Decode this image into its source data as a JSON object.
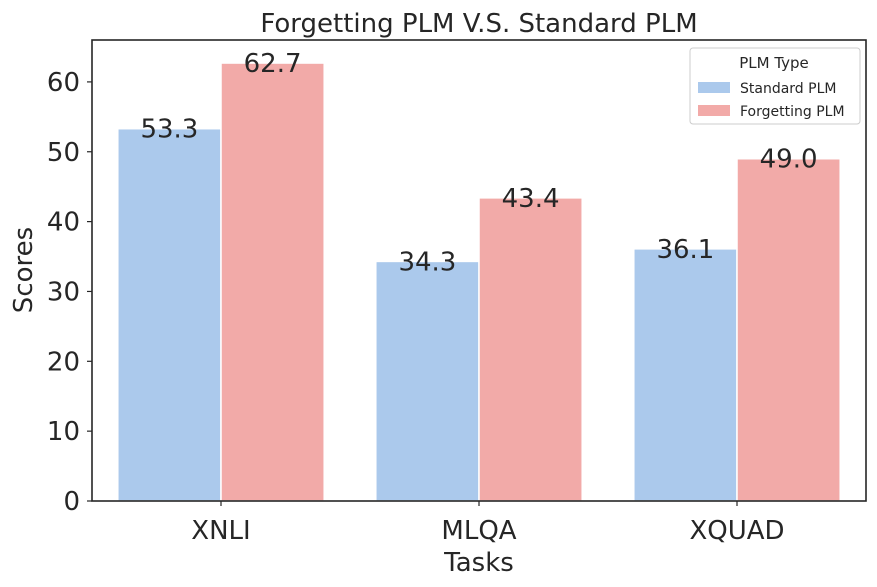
{
  "chart_data": {
    "type": "bar",
    "title": "Forgetting PLM V.S. Standard PLM",
    "xlabel": "Tasks",
    "ylabel": "Scores",
    "categories": [
      "XNLI",
      "MLQA",
      "XQUAD"
    ],
    "series": [
      {
        "name": "Standard PLM",
        "values": [
          53.3,
          34.3,
          36.1
        ],
        "labels": [
          "53.3",
          "34.3",
          "36.1"
        ],
        "color": "#abc9ec"
      },
      {
        "name": "Forgetting PLM",
        "values": [
          62.7,
          43.4,
          49.0
        ],
        "labels": [
          "62.7",
          "43.4",
          "49.0"
        ],
        "color": "#f2aaa8"
      }
    ],
    "ylim": [
      0,
      66
    ],
    "yticks": [
      0,
      10,
      20,
      30,
      40,
      50,
      60
    ],
    "ytick_labels": [
      "0",
      "10",
      "20",
      "30",
      "40",
      "50",
      "60"
    ],
    "legend": {
      "title": "PLM Type",
      "placement": "top-right"
    },
    "grid": false
  }
}
